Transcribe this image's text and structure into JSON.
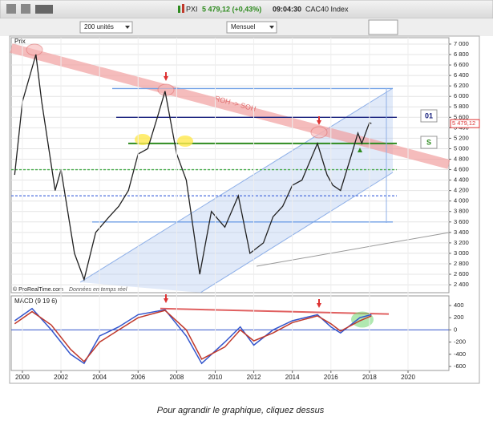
{
  "toolbar": {
    "symbol": "PXI",
    "quote": "5 479,12 (+0,43%)",
    "time": "09:04:30",
    "name": "CAC40 Index",
    "units": "200 unités",
    "period": "Mensuel"
  },
  "caption": "Pour agrandir le graphique, cliquez dessus",
  "chart_data": [
    {
      "type": "line",
      "title": "Prix",
      "source": "© ProRealTime.com",
      "source_note": "Données en temps réel",
      "annotation": "ROH -> SOH",
      "box_labels": [
        "01",
        "S"
      ],
      "last_value": 5479.12,
      "last_label": "5 479,12",
      "xlim": [
        1999.42,
        2022.12
      ],
      "ylim": [
        2248,
        7122
      ],
      "yticks": [
        {
          "value": 2400,
          "label": "2 400"
        },
        {
          "value": 2600,
          "label": "2 600"
        },
        {
          "value": 2800,
          "label": "2 800"
        },
        {
          "value": 3000,
          "label": "3 000"
        },
        {
          "value": 3200,
          "label": "3 200"
        },
        {
          "value": 3400,
          "label": "3 400"
        },
        {
          "value": 3600,
          "label": "3 600"
        },
        {
          "value": 3800,
          "label": "3 800"
        },
        {
          "value": 4000,
          "label": "4 000"
        },
        {
          "value": 4200,
          "label": "4 200"
        },
        {
          "value": 4400,
          "label": "4 400"
        },
        {
          "value": 4600,
          "label": "4 600"
        },
        {
          "value": 4800,
          "label": "4 800"
        },
        {
          "value": 5000,
          "label": "5 000"
        },
        {
          "value": 5200,
          "label": "5 200"
        },
        {
          "value": 5400,
          "label": "5 400"
        },
        {
          "value": 5600,
          "label": "5 600"
        },
        {
          "value": 5800,
          "label": "5 800"
        },
        {
          "value": 6000,
          "label": "6 000"
        },
        {
          "value": 6200,
          "label": "6 200"
        },
        {
          "value": 6400,
          "label": "6 400"
        },
        {
          "value": 6600,
          "label": "6 600"
        },
        {
          "value": 6800,
          "label": "6 800"
        },
        {
          "value": 7000,
          "label": "7 000"
        }
      ],
      "grid": true,
      "hlines": [
        {
          "value": 6150,
          "color": "#6f9fe6",
          "dashed": false
        },
        {
          "value": 5600,
          "color": "#1a237e",
          "dashed": false
        },
        {
          "value": 5100,
          "color": "#2e8b1f",
          "dashed": false
        },
        {
          "value": 4600,
          "color": "#4caf50",
          "dashed": true
        },
        {
          "value": 4100,
          "color": "#5c7be0",
          "dashed": true
        },
        {
          "value": 3600,
          "color": "#6f9fe6",
          "dashed": false
        }
      ],
      "series": [
        {
          "name": "CAC40",
          "color": "#222222",
          "x": [
            1999.6,
            2000.0,
            2000.7,
            2001.0,
            2001.7,
            2002.0,
            2002.7,
            2003.2,
            2003.8,
            2004.5,
            2005.0,
            2005.5,
            2006.0,
            2006.5,
            2007.0,
            2007.4,
            2008.0,
            2008.5,
            2009.2,
            2009.8,
            2010.5,
            2011.2,
            2011.8,
            2012.5,
            2013.0,
            2013.5,
            2014.0,
            2014.5,
            2015.3,
            2015.8,
            2016.1,
            2016.5,
            2017.0,
            2017.4,
            2017.6,
            2018.0,
            2018.1
          ],
          "values": [
            4500,
            5900,
            6800,
            5900,
            4200,
            4600,
            3000,
            2500,
            3400,
            3700,
            3900,
            4200,
            4900,
            5000,
            5600,
            6100,
            4900,
            4400,
            2600,
            3800,
            3500,
            4100,
            3000,
            3200,
            3700,
            3900,
            4300,
            4400,
            5100,
            4500,
            4300,
            4200,
            4800,
            5300,
            5100,
            5500,
            5479.12
          ]
        }
      ]
    },
    {
      "type": "line",
      "title": "MACD (9 19 6)",
      "xlim": [
        1999.42,
        2022.12
      ],
      "ylim": [
        -666,
        558
      ],
      "yticks": [
        400,
        200,
        0,
        -200,
        -400,
        -600
      ],
      "xticks": [
        2000,
        2002,
        2004,
        2006,
        2008,
        2010,
        2012,
        2014,
        2016,
        2018,
        2020
      ],
      "series": [
        {
          "name": "MACD",
          "color": "#3355cc",
          "x": [
            1999.6,
            2000.5,
            2001.5,
            2002.5,
            2003.2,
            2004.0,
            2005.0,
            2006.0,
            2007.4,
            2008.5,
            2009.3,
            2010.5,
            2011.3,
            2012.0,
            2013.0,
            2014.0,
            2015.3,
            2016.0,
            2016.5,
            2017.5,
            2018.1
          ],
          "values": [
            150,
            350,
            0,
            -400,
            -550,
            -100,
            50,
            250,
            330,
            -100,
            -550,
            -200,
            50,
            -250,
            0,
            150,
            250,
            50,
            -50,
            200,
            250
          ]
        },
        {
          "name": "Signal",
          "color": "#c0392b",
          "x": [
            1999.6,
            2000.5,
            2001.5,
            2002.5,
            2003.2,
            2004.0,
            2005.0,
            2006.0,
            2007.4,
            2008.5,
            2009.3,
            2010.5,
            2011.3,
            2012.0,
            2013.0,
            2014.0,
            2015.3,
            2016.0,
            2016.5,
            2017.5,
            2018.1
          ],
          "values": [
            100,
            300,
            80,
            -320,
            -520,
            -200,
            0,
            200,
            320,
            0,
            -480,
            -280,
            0,
            -180,
            -50,
            120,
            230,
            100,
            -20,
            150,
            230
          ]
        }
      ]
    }
  ]
}
